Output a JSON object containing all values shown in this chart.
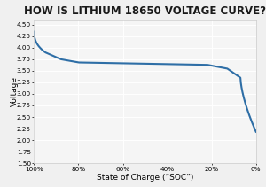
{
  "title": "HOW IS LITHIUM 18650 VOLTAGE CURVE?",
  "xlabel": "State of Charge (“SOC”)",
  "ylabel": "Voltage",
  "line_color": "#2e6ea6",
  "line_width": 1.5,
  "background_color": "#f0f0f0",
  "plot_bg_color": "#f5f5f5",
  "border_color": "#cccccc",
  "grid_color": "#ffffff",
  "ylim": [
    1.5,
    4.6
  ],
  "yticks": [
    1.5,
    1.75,
    2.0,
    2.25,
    2.5,
    2.75,
    3.0,
    3.25,
    3.5,
    3.75,
    4.0,
    4.25,
    4.5
  ],
  "ytick_labels": [
    "1.50",
    "1.75",
    "2.00",
    "2.25",
    "2.50",
    "2.75",
    "3.00",
    "3.25",
    "3.50",
    "3.75",
    "4.00",
    "4.25",
    "4.50"
  ],
  "xtick_labels": [
    "100%",
    "80%",
    "60%",
    "40%",
    "20%",
    "0%"
  ],
  "title_fontsize": 8.5,
  "axis_fontsize": 6.5,
  "tick_fontsize": 5.2
}
